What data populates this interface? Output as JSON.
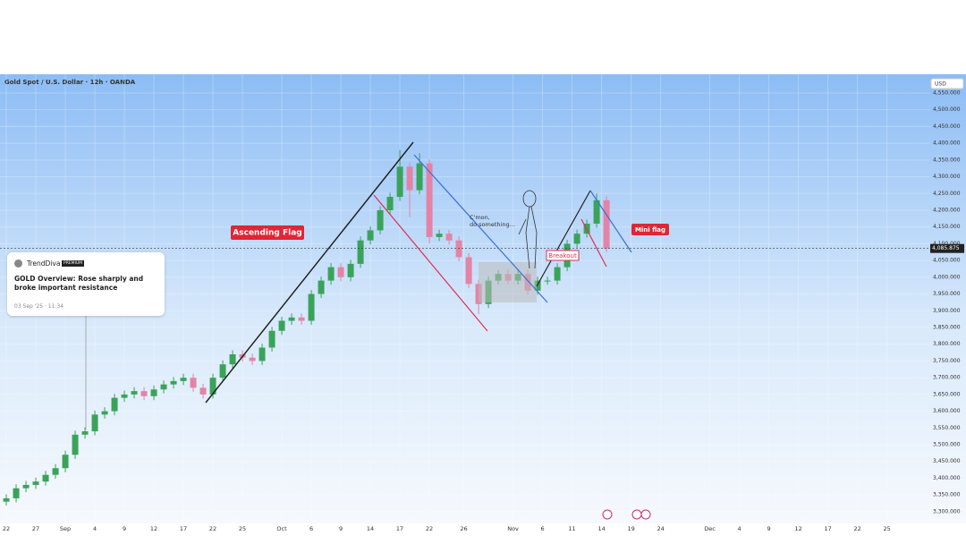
{
  "chart_data": {
    "type": "candlestick",
    "title": "Gold Spot / U.S. Dollar · 12h · OANDA",
    "currency": "USD",
    "up_color": "#3aa35a",
    "down_color": "#e384a6",
    "x": [
      0,
      1,
      2,
      3,
      4,
      5,
      6,
      7,
      8,
      9,
      10,
      11,
      12,
      13,
      14,
      15,
      16,
      17,
      18,
      19,
      20,
      21,
      22,
      23,
      24,
      25,
      26,
      27,
      28,
      29,
      30,
      31,
      32,
      33,
      34,
      35,
      36,
      37,
      38,
      39,
      40,
      41,
      42,
      43,
      44,
      45,
      46,
      47,
      48,
      49,
      50,
      51,
      52,
      53,
      54,
      55,
      56,
      57,
      58,
      59,
      60,
      61
    ],
    "open": [
      3330,
      3340,
      3370,
      3380,
      3390,
      3410,
      3430,
      3470,
      3530,
      3540,
      3590,
      3600,
      3640,
      3650,
      3660,
      3645,
      3665,
      3680,
      3690,
      3700,
      3670,
      3650,
      3700,
      3740,
      3770,
      3760,
      3750,
      3790,
      3840,
      3870,
      3880,
      3870,
      3950,
      3990,
      4030,
      4000,
      4040,
      4110,
      4140,
      4200,
      4240,
      4330,
      4260,
      4340,
      4120,
      4130,
      4110,
      4060,
      3980,
      3920,
      3990,
      4010,
      3990,
      4010,
      3960,
      3990,
      3990,
      4030,
      4100,
      4130,
      4160,
      4230
    ],
    "high": [
      3352,
      3382,
      3392,
      3402,
      3422,
      3442,
      3482,
      3542,
      3552,
      3602,
      3612,
      3652,
      3662,
      3672,
      3672,
      3677,
      3692,
      3702,
      3712,
      3712,
      3682,
      3712,
      3752,
      3782,
      3782,
      3772,
      3802,
      3852,
      3882,
      3892,
      3892,
      3962,
      4002,
      4042,
      4042,
      4052,
      4122,
      4152,
      4212,
      4252,
      4380,
      4342,
      4370,
      4352,
      4142,
      4142,
      4122,
      4072,
      3992,
      4002,
      4022,
      4022,
      4022,
      4022,
      4002,
      4002,
      4042,
      4112,
      4142,
      4172,
      4250,
      4242
    ],
    "low": [
      3318,
      3328,
      3358,
      3368,
      3378,
      3398,
      3418,
      3458,
      3518,
      3528,
      3578,
      3588,
      3628,
      3638,
      3633,
      3633,
      3653,
      3668,
      3678,
      3658,
      3638,
      3638,
      3688,
      3728,
      3748,
      3738,
      3738,
      3778,
      3828,
      3858,
      3858,
      3858,
      3938,
      3978,
      3988,
      3988,
      4028,
      4098,
      4128,
      4188,
      4228,
      4180,
      4248,
      4100,
      4108,
      4098,
      4048,
      3968,
      3890,
      3908,
      3978,
      3978,
      3978,
      3948,
      3948,
      3978,
      3978,
      4018,
      4088,
      4118,
      4148,
      4075
    ],
    "close": [
      3340,
      3370,
      3380,
      3390,
      3410,
      3430,
      3470,
      3530,
      3540,
      3590,
      3600,
      3640,
      3650,
      3660,
      3645,
      3665,
      3680,
      3690,
      3700,
      3670,
      3650,
      3700,
      3740,
      3770,
      3760,
      3750,
      3790,
      3840,
      3870,
      3880,
      3870,
      3950,
      3990,
      4030,
      4000,
      4040,
      4110,
      4140,
      4200,
      4240,
      4330,
      4260,
      4340,
      4120,
      4130,
      4110,
      4060,
      3980,
      3920,
      3990,
      4010,
      3990,
      4010,
      3960,
      3990,
      3990,
      4030,
      4100,
      4130,
      4160,
      4230,
      4086
    ],
    "xlim": [
      -0.64,
      93.9
    ],
    "xticks": [
      {
        "value": 0,
        "label": "22"
      },
      {
        "value": 3,
        "label": "27"
      },
      {
        "value": 6,
        "label": "Sep"
      },
      {
        "value": 9,
        "label": "4"
      },
      {
        "value": 12,
        "label": "9"
      },
      {
        "value": 15,
        "label": "12"
      },
      {
        "value": 18,
        "label": "17"
      },
      {
        "value": 21,
        "label": "22"
      },
      {
        "value": 24,
        "label": "25"
      },
      {
        "value": 28,
        "label": "Oct"
      },
      {
        "value": 31,
        "label": "6"
      },
      {
        "value": 34,
        "label": "9"
      },
      {
        "value": 37,
        "label": "14"
      },
      {
        "value": 40,
        "label": "17"
      },
      {
        "value": 43,
        "label": "22"
      },
      {
        "value": 46.5,
        "label": "26"
      },
      {
        "value": 51.5,
        "label": "Nov"
      },
      {
        "value": 54.5,
        "label": "6"
      },
      {
        "value": 57.5,
        "label": "11"
      },
      {
        "value": 60.5,
        "label": "14"
      },
      {
        "value": 63.5,
        "label": "19"
      },
      {
        "value": 66.5,
        "label": "24"
      },
      {
        "value": 71.5,
        "label": "Dec"
      },
      {
        "value": 74.5,
        "label": "4"
      },
      {
        "value": 77.5,
        "label": "9"
      },
      {
        "value": 80.5,
        "label": "12"
      },
      {
        "value": 83.5,
        "label": "17"
      },
      {
        "value": 86.5,
        "label": "22"
      },
      {
        "value": 89.5,
        "label": "25"
      }
    ],
    "ylim": [
      3265,
      4606
    ],
    "yticks": [
      {
        "value": 3300,
        "label": "3,300.000"
      },
      {
        "value": 3350,
        "label": "3,350.000"
      },
      {
        "value": 3400,
        "label": "3,400.000"
      },
      {
        "value": 3450,
        "label": "3,450.000"
      },
      {
        "value": 3500,
        "label": "3,500.000"
      },
      {
        "value": 3550,
        "label": "3,550.000"
      },
      {
        "value": 3600,
        "label": "3,600.000"
      },
      {
        "value": 3650,
        "label": "3,650.000"
      },
      {
        "value": 3700,
        "label": "3,700.000"
      },
      {
        "value": 3750,
        "label": "3,750.000"
      },
      {
        "value": 3800,
        "label": "3,800.000"
      },
      {
        "value": 3850,
        "label": "3,850.000"
      },
      {
        "value": 3900,
        "label": "3,900.000"
      },
      {
        "value": 3950,
        "label": "3,950.000"
      },
      {
        "value": 4000,
        "label": "4,000.000"
      },
      {
        "value": 4050,
        "label": "4,050.000"
      },
      {
        "value": 4100,
        "label": "4,100.000"
      },
      {
        "value": 4150,
        "label": "4,150.000"
      },
      {
        "value": 4200,
        "label": "4,200.000"
      },
      {
        "value": 4250,
        "label": "4,250.000"
      },
      {
        "value": 4300,
        "label": "4,300.000"
      },
      {
        "value": 4350,
        "label": "4,350.000"
      },
      {
        "value": 4400,
        "label": "4,400.000"
      },
      {
        "value": 4450,
        "label": "4,450.000"
      },
      {
        "value": 4500,
        "label": "4,500.000"
      },
      {
        "value": 4550,
        "label": "4,550.000"
      }
    ],
    "last_price": {
      "value": 4085.875,
      "label": "4,085.875"
    },
    "annotations": {
      "ascending_flag": "Ascending Flag",
      "mini_flag": "Mini flag",
      "breakout": "Breakout",
      "speech_1": "C'mon,",
      "speech_2": "do something..."
    },
    "news_card": {
      "author": "TrendDiva",
      "badge": "PREMIUM",
      "headline": "GOLD Overview: Rose sharply and broke important resistance",
      "time": "03 Sep '25 · 11:34"
    }
  }
}
